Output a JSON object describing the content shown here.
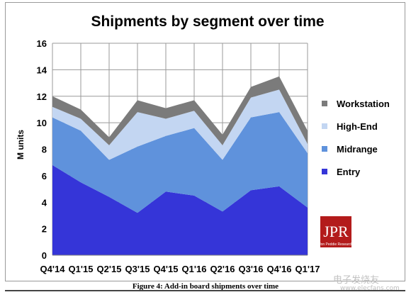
{
  "chart_data": {
    "type": "area",
    "stacked": true,
    "title": "Shipments by segment over time",
    "xlabel": "",
    "ylabel": "M units",
    "ylim": [
      0,
      16
    ],
    "yticks": [
      0,
      2,
      4,
      6,
      8,
      10,
      12,
      14,
      16
    ],
    "grid": true,
    "legend_position": "right",
    "categories": [
      "Q4'14",
      "Q1'15",
      "Q2'15",
      "Q3'15",
      "Q4'15",
      "Q1'16",
      "Q2'16",
      "Q3'16",
      "Q4'16",
      "Q1'17"
    ],
    "series": [
      {
        "name": "Entry",
        "color": "#3535d8",
        "values": [
          6.8,
          5.5,
          4.4,
          3.2,
          4.8,
          4.5,
          3.3,
          4.9,
          5.2,
          3.6
        ]
      },
      {
        "name": "Midrange",
        "color": "#5f92dc",
        "values": [
          3.6,
          3.9,
          2.8,
          5.0,
          4.2,
          5.1,
          3.9,
          5.5,
          5.6,
          4.1
        ]
      },
      {
        "name": "High-End",
        "color": "#c3d6f2",
        "values": [
          0.8,
          0.9,
          1.1,
          2.6,
          1.3,
          1.3,
          1.1,
          1.5,
          1.7,
          0.7
        ]
      },
      {
        "name": "Workstation",
        "color": "#7b7b7b",
        "values": [
          0.8,
          0.7,
          0.6,
          0.9,
          0.8,
          0.8,
          0.8,
          0.8,
          1.0,
          1.0
        ]
      }
    ],
    "legend_order": [
      "Workstation",
      "High-End",
      "Midrange",
      "Entry"
    ]
  },
  "caption": "Figure 4: Add-in board shipments over time",
  "logo": {
    "text": "JPR",
    "subtext": "Jon Peddie Research",
    "color": "#b31b1b"
  },
  "watermark": {
    "text": "电子发烧友",
    "url": "www.elecfans.com"
  }
}
